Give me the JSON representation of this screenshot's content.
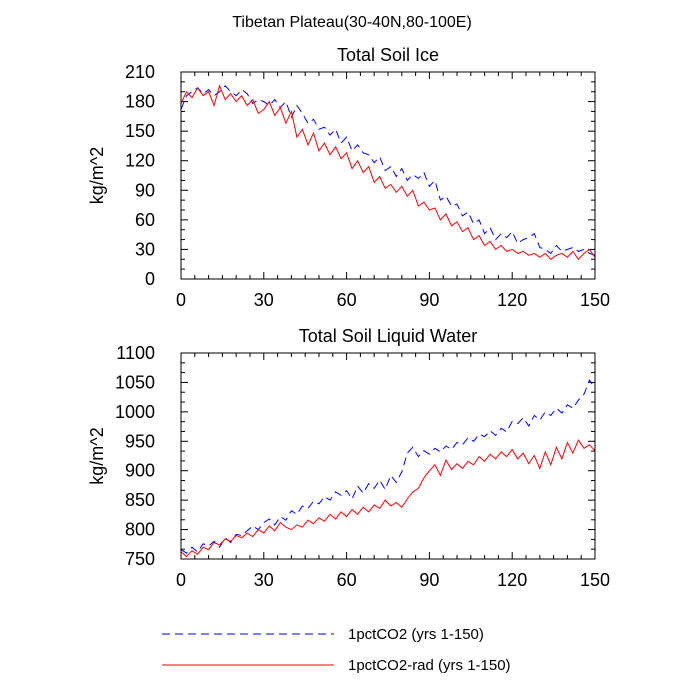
{
  "figure": {
    "title": "Tibetan Plateau(30-40N,80-100E)"
  },
  "chart_data": [
    {
      "type": "line",
      "title": "Total Soil Ice",
      "xlabel": "",
      "ylabel": "kg/m^2",
      "xlim": [
        0,
        150
      ],
      "ylim": [
        0,
        210
      ],
      "xticks": [
        0,
        30,
        60,
        90,
        120,
        150
      ],
      "yticks": [
        0,
        30,
        60,
        90,
        120,
        150,
        180,
        210
      ],
      "grid": false,
      "series": [
        {
          "name": "1pctCO2 (yrs 1-150)",
          "color": "#0000ff",
          "dash": "dashed",
          "x": [
            0,
            2,
            4,
            6,
            8,
            10,
            12,
            14,
            16,
            18,
            20,
            22,
            24,
            26,
            28,
            30,
            32,
            34,
            36,
            38,
            40,
            42,
            44,
            46,
            48,
            50,
            52,
            54,
            56,
            58,
            60,
            62,
            64,
            66,
            68,
            70,
            72,
            74,
            76,
            78,
            80,
            82,
            84,
            86,
            88,
            90,
            92,
            94,
            96,
            98,
            100,
            102,
            104,
            106,
            108,
            110,
            112,
            114,
            116,
            118,
            120,
            122,
            124,
            126,
            128,
            130,
            132,
            134,
            136,
            138,
            140,
            142,
            144,
            146,
            148,
            150
          ],
          "y": [
            172,
            186,
            190,
            194,
            188,
            192,
            186,
            190,
            196,
            190,
            186,
            192,
            188,
            178,
            182,
            180,
            176,
            182,
            174,
            180,
            164,
            176,
            168,
            158,
            162,
            152,
            154,
            146,
            152,
            138,
            144,
            130,
            136,
            128,
            126,
            118,
            124,
            110,
            114,
            104,
            112,
            100,
            106,
            102,
            108,
            94,
            100,
            80,
            84,
            74,
            76,
            64,
            68,
            56,
            60,
            46,
            52,
            40,
            46,
            42,
            48,
            36,
            40,
            42,
            46,
            32,
            30,
            26,
            34,
            28,
            30,
            32,
            28,
            30,
            26,
            24
          ]
        },
        {
          "name": "1pctCO2-rad (yrs 1-150)",
          "color": "#ff0000",
          "dash": "solid",
          "x": [
            0,
            2,
            4,
            6,
            8,
            10,
            12,
            14,
            16,
            18,
            20,
            22,
            24,
            26,
            28,
            30,
            32,
            34,
            36,
            38,
            40,
            42,
            44,
            46,
            48,
            50,
            52,
            54,
            56,
            58,
            60,
            62,
            64,
            66,
            68,
            70,
            72,
            74,
            76,
            78,
            80,
            82,
            84,
            86,
            88,
            90,
            92,
            94,
            96,
            98,
            100,
            102,
            104,
            106,
            108,
            110,
            112,
            114,
            116,
            118,
            120,
            122,
            124,
            126,
            128,
            130,
            132,
            134,
            136,
            138,
            140,
            142,
            144,
            146,
            148,
            150
          ],
          "y": [
            178,
            190,
            184,
            194,
            186,
            190,
            176,
            196,
            182,
            188,
            180,
            186,
            176,
            182,
            168,
            172,
            180,
            166,
            174,
            158,
            170,
            144,
            152,
            136,
            148,
            130,
            138,
            126,
            134,
            122,
            128,
            112,
            120,
            108,
            114,
            98,
            104,
            92,
            96,
            88,
            94,
            84,
            90,
            74,
            78,
            70,
            72,
            60,
            66,
            54,
            58,
            48,
            52,
            40,
            44,
            34,
            38,
            30,
            34,
            28,
            30,
            26,
            28,
            24,
            26,
            22,
            26,
            20,
            24,
            26,
            22,
            28,
            20,
            26,
            30,
            22
          ]
        }
      ]
    },
    {
      "type": "line",
      "title": "Total Soil Liquid Water",
      "xlabel": "",
      "ylabel": "kg/m^2",
      "xlim": [
        0,
        150
      ],
      "ylim": [
        750,
        1100
      ],
      "xticks": [
        0,
        30,
        60,
        90,
        120,
        150
      ],
      "yticks": [
        750,
        800,
        850,
        900,
        950,
        1000,
        1050,
        1100
      ],
      "grid": false,
      "series": [
        {
          "name": "1pctCO2 (yrs 1-150)",
          "color": "#0000ff",
          "dash": "dashed",
          "x": [
            0,
            2,
            4,
            6,
            8,
            10,
            12,
            14,
            16,
            18,
            20,
            22,
            24,
            26,
            28,
            30,
            32,
            34,
            36,
            38,
            40,
            42,
            44,
            46,
            48,
            50,
            52,
            54,
            56,
            58,
            60,
            62,
            64,
            66,
            68,
            70,
            72,
            74,
            76,
            78,
            80,
            82,
            84,
            86,
            88,
            90,
            92,
            94,
            96,
            98,
            100,
            102,
            104,
            106,
            108,
            110,
            112,
            114,
            116,
            118,
            120,
            122,
            124,
            126,
            128,
            130,
            132,
            134,
            136,
            138,
            140,
            142,
            144,
            146,
            148,
            150
          ],
          "y": [
            766,
            760,
            770,
            762,
            776,
            772,
            780,
            770,
            786,
            778,
            792,
            790,
            798,
            806,
            800,
            812,
            818,
            808,
            822,
            816,
            832,
            826,
            840,
            836,
            848,
            844,
            856,
            850,
            864,
            858,
            866,
            852,
            874,
            862,
            878,
            870,
            884,
            868,
            892,
            880,
            898,
            930,
            940,
            924,
            934,
            928,
            938,
            932,
            942,
            936,
            948,
            944,
            956,
            950,
            962,
            958,
            968,
            960,
            972,
            966,
            984,
            980,
            990,
            976,
            994,
            986,
            1000,
            994,
            1006,
            998,
            1012,
            1006,
            1020,
            1030,
            1054,
            1040
          ]
        },
        {
          "name": "1pctCO2-rad (yrs 1-150)",
          "color": "#ff0000",
          "dash": "solid",
          "x": [
            0,
            2,
            4,
            6,
            8,
            10,
            12,
            14,
            16,
            18,
            20,
            22,
            24,
            26,
            28,
            30,
            32,
            34,
            36,
            38,
            40,
            42,
            44,
            46,
            48,
            50,
            52,
            54,
            56,
            58,
            60,
            62,
            64,
            66,
            68,
            70,
            72,
            74,
            76,
            78,
            80,
            82,
            84,
            86,
            88,
            90,
            92,
            94,
            96,
            98,
            100,
            102,
            104,
            106,
            108,
            110,
            112,
            114,
            116,
            118,
            120,
            122,
            124,
            126,
            128,
            130,
            132,
            134,
            136,
            138,
            140,
            142,
            144,
            146,
            148,
            150
          ],
          "y": [
            762,
            754,
            764,
            758,
            770,
            766,
            778,
            774,
            784,
            780,
            790,
            786,
            794,
            788,
            800,
            794,
            806,
            798,
            812,
            804,
            800,
            808,
            804,
            816,
            810,
            820,
            814,
            826,
            818,
            830,
            822,
            834,
            826,
            838,
            830,
            842,
            836,
            850,
            840,
            846,
            838,
            852,
            864,
            870,
            888,
            900,
            910,
            892,
            918,
            902,
            912,
            904,
            916,
            910,
            924,
            916,
            928,
            920,
            932,
            924,
            936,
            920,
            930,
            912,
            926,
            904,
            932,
            910,
            940,
            920,
            948,
            930,
            952,
            938,
            944,
            934
          ]
        }
      ]
    }
  ],
  "legend": [
    {
      "label": "1pctCO2 (yrs 1-150)",
      "color": "#0000ff",
      "dash": "dashed"
    },
    {
      "label": "1pctCO2-rad (yrs 1-150)",
      "color": "#ff0000",
      "dash": "solid"
    }
  ]
}
